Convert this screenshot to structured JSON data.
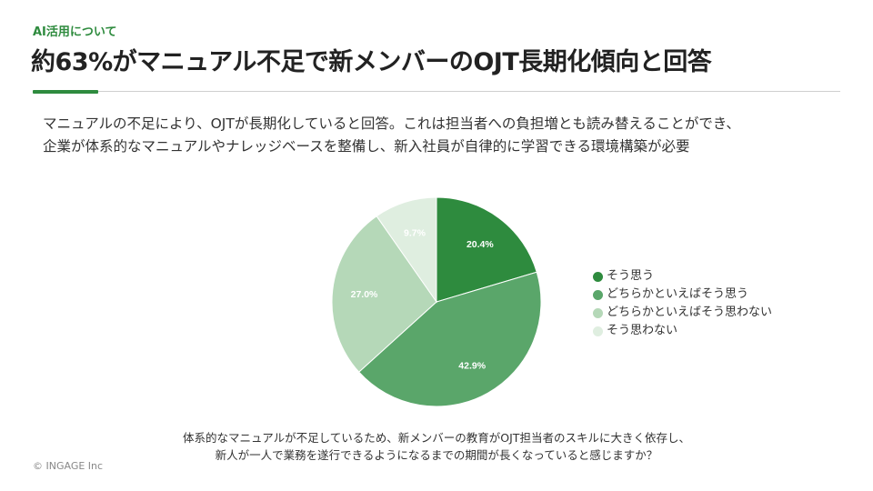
{
  "slide": {
    "tag": "AI活用について",
    "headline": "約63%がマニュアル不足で新メンバーのOJT長期化傾向と回答",
    "description_lines": [
      "マニュアルの不足により、OJTが長期化していると回答。これは担当者への負担増とも読み替えることができ、",
      "企業が体系的なマニュアルやナレッジベースを整備し、新入社員が自律的に学習できる環境構築が必要"
    ],
    "question_lines": [
      "体系的なマニュアルが不足しているため、新メンバーの教育がOJT担当者のスキルに大きく依存し、",
      "新人が一人で業務を遂行できるようになるまでの期間が長くなっていると感じますか？"
    ],
    "copyright": "© INGAGE Inc"
  },
  "colors": {
    "accent": "#2e8b3e",
    "series": [
      "#2e8b3e",
      "#5aa66a",
      "#b5d8b8",
      "#dfeee0"
    ],
    "label_light": "#ffffff",
    "label_dark": "#ffffff"
  },
  "chart_data": {
    "type": "pie",
    "categories": [
      "そう思う",
      "どちらかといえばそう思う",
      "どちらかといえばそう思わない",
      "そう思わない"
    ],
    "values": [
      20.4,
      42.9,
      27.0,
      9.7
    ],
    "labels": [
      "20.4%",
      "42.9%",
      "27.0%",
      "9.7%"
    ],
    "start": "12 o'clock, clockwise",
    "legend_position": "right"
  }
}
